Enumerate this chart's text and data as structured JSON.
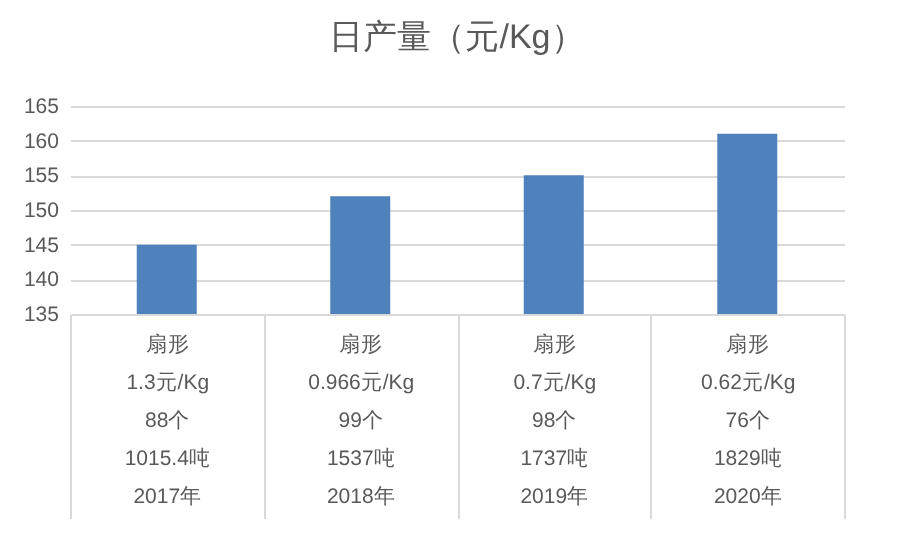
{
  "chart_data": {
    "type": "bar",
    "title": "日产量（元/Kg）",
    "categories": [
      "扇形\n1.3元/Kg\n88个\n1015.4吨\n2017年",
      "扇形\n0.966元/Kg\n99个\n1537吨\n2018年",
      "扇形\n0.7元/Kg\n98个\n1737吨\n2019年",
      "扇形\n0.62元/Kg\n76个\n1829吨\n2020年"
    ],
    "values": [
      145,
      152,
      155,
      161
    ],
    "color": "#4f81bd",
    "ylim": [
      135,
      165
    ],
    "yticks": [
      135,
      140,
      145,
      150,
      155,
      160,
      165
    ],
    "grid": "y"
  }
}
